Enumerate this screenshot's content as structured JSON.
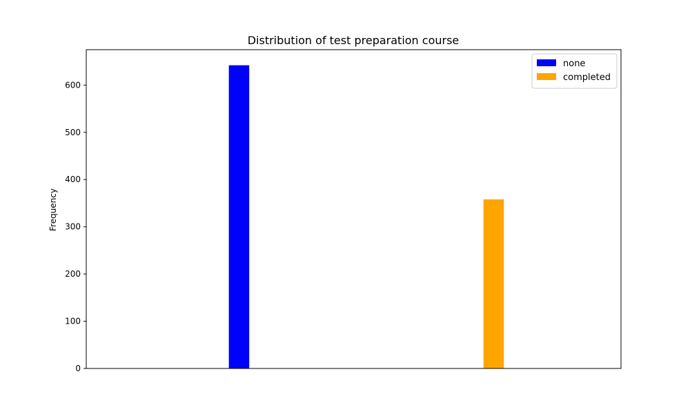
{
  "chart_data": {
    "type": "bar",
    "title": "Distribution of test preparation course",
    "xlabel": "",
    "ylabel": "Frequency",
    "ylim": [
      0,
      675
    ],
    "yticks": [
      0,
      100,
      200,
      300,
      400,
      500,
      600
    ],
    "x_positions": [
      1,
      2
    ],
    "xlim": [
      0.4,
      2.5
    ],
    "bar_width": 0.08,
    "series": [
      {
        "name": "none",
        "x": 1,
        "value": 642,
        "color": "#0000ff"
      },
      {
        "name": "completed",
        "x": 2,
        "value": 358,
        "color": "#ffa500"
      }
    ],
    "legend": {
      "placement": "top-right"
    },
    "grid": false
  }
}
